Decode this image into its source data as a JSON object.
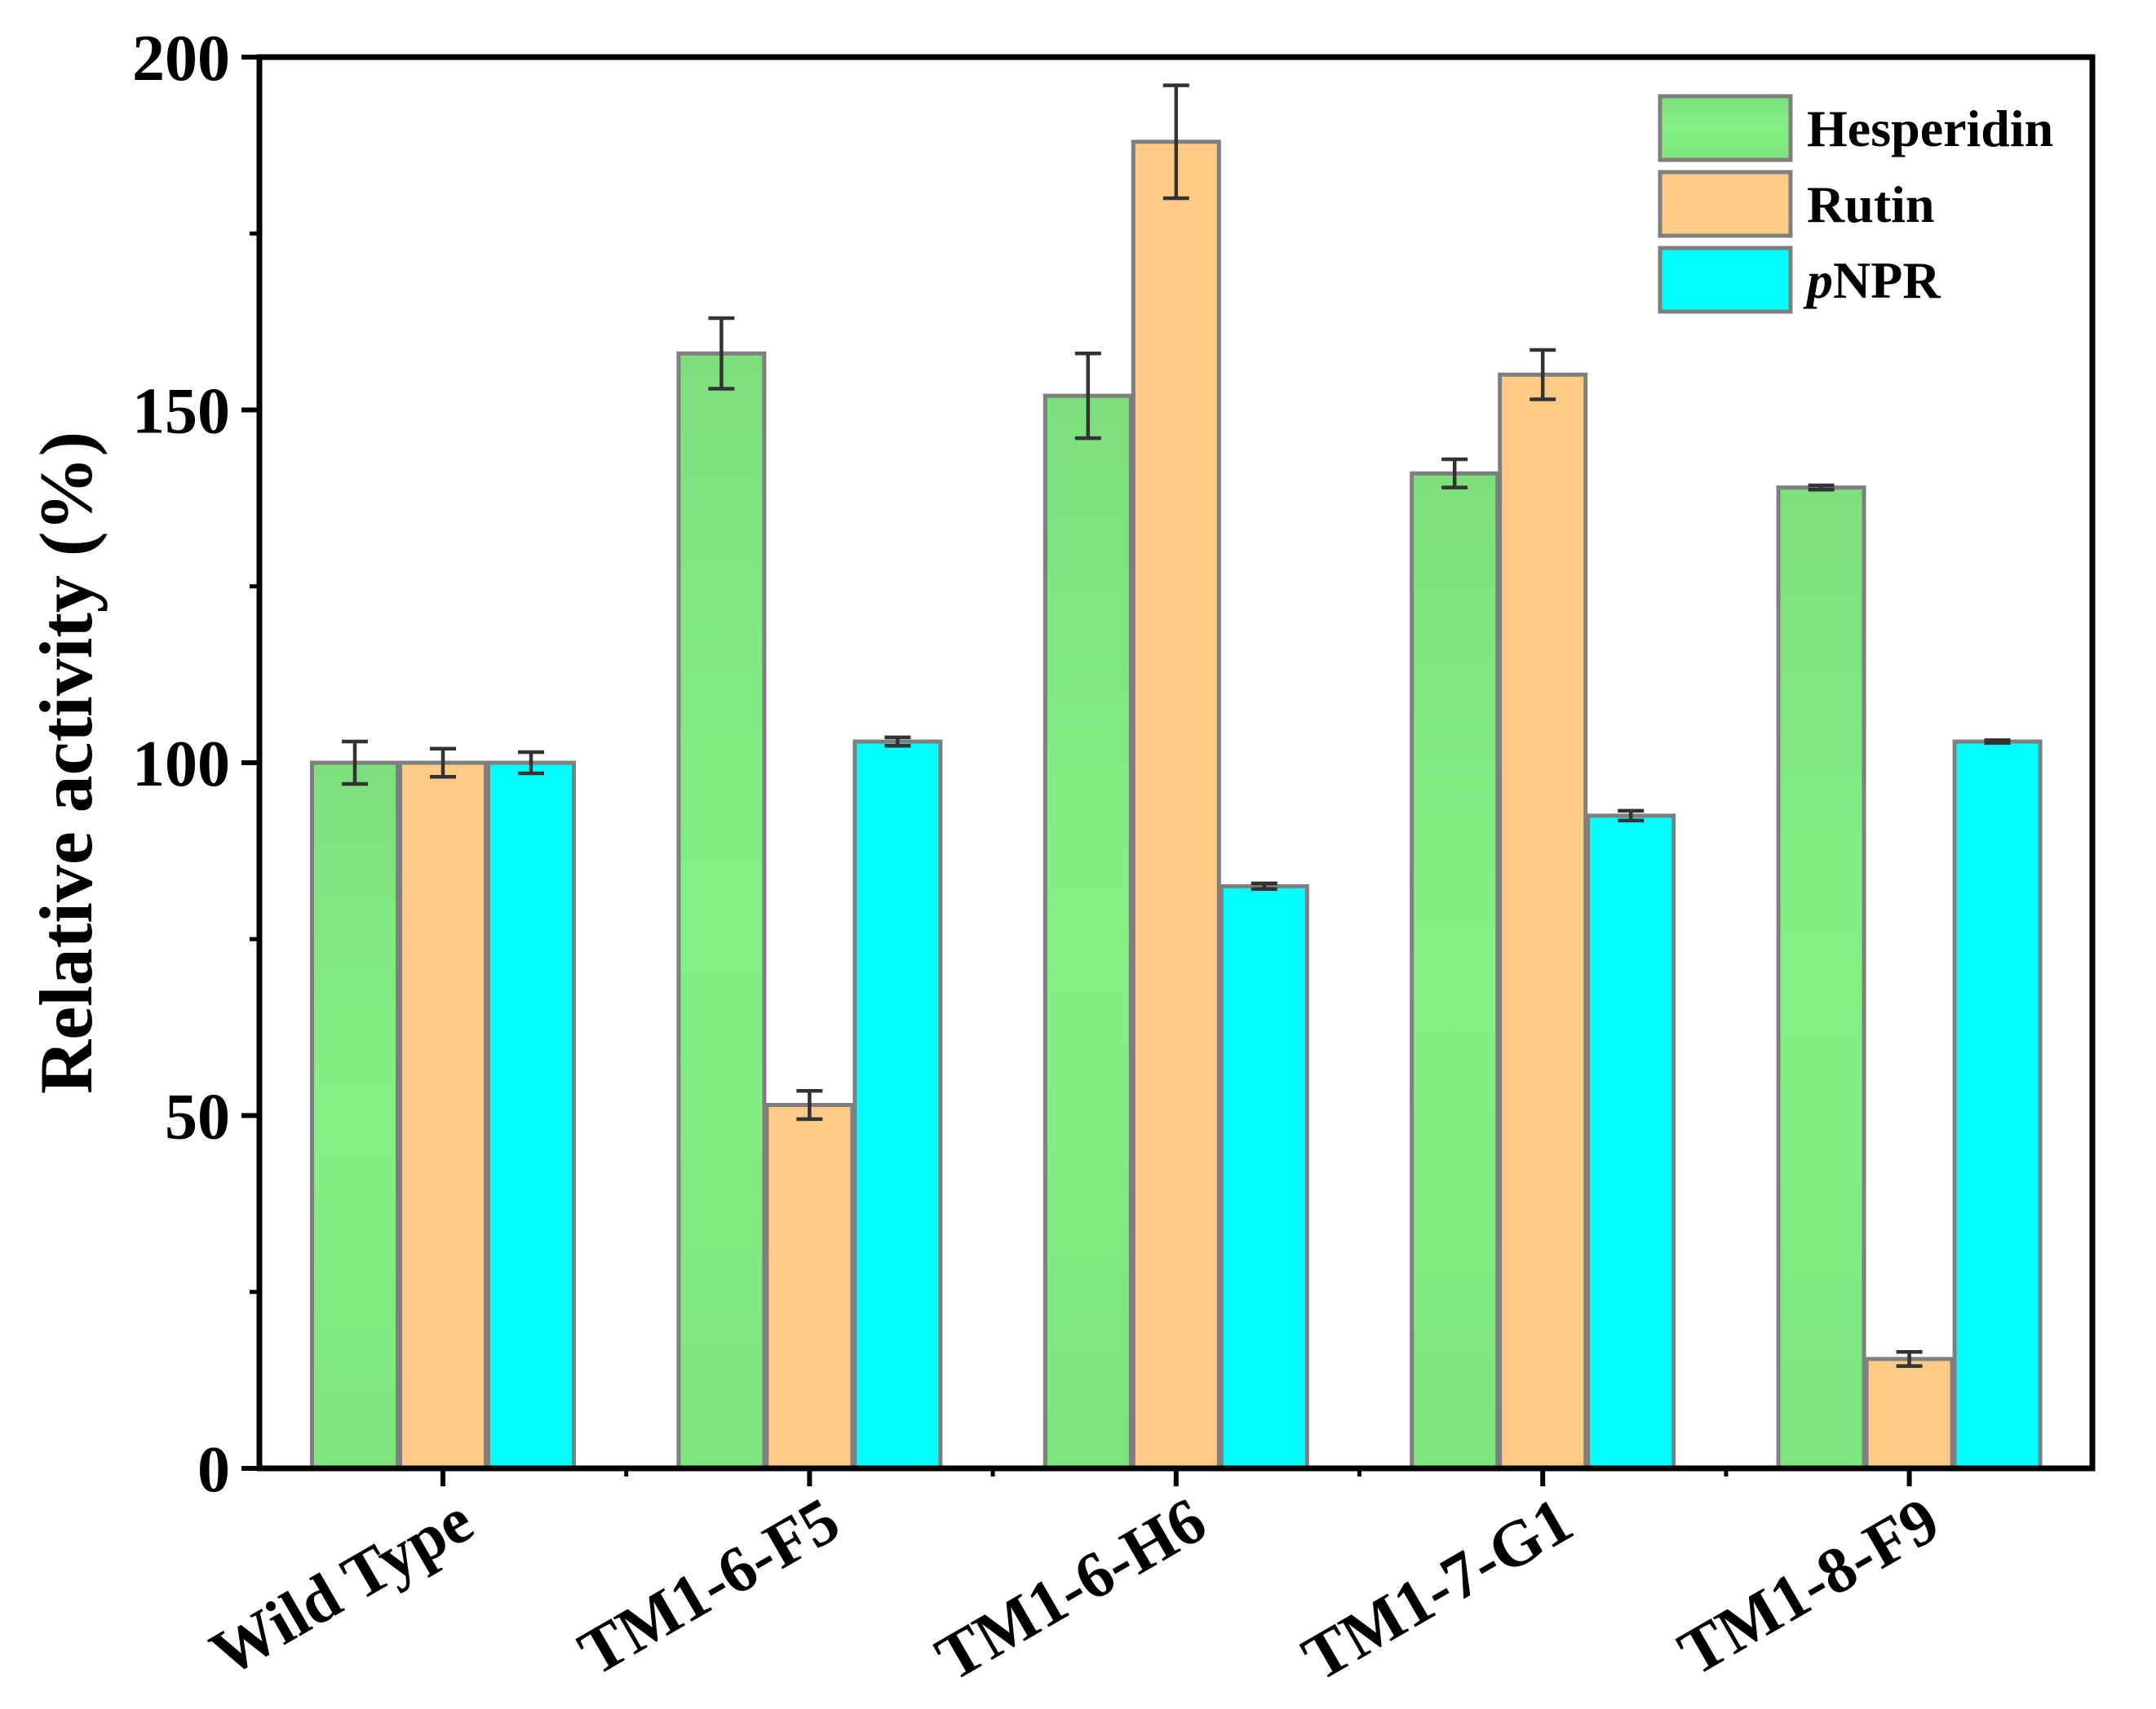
{
  "chart_data": {
    "type": "bar",
    "title": "",
    "xlabel": "",
    "ylabel": "Relative activity (%)",
    "ylim": [
      0,
      200
    ],
    "yticks": [
      "0",
      "50",
      "100",
      "150",
      "200"
    ],
    "categories": [
      "Wild Type",
      "TM1-6-F5",
      "TM1-6-H6",
      "TM1-7-G1",
      "TM1-8-F9"
    ],
    "series": [
      {
        "name": "Hesperidin",
        "color": "#82ee82",
        "values": [
          100,
          158,
          152,
          141,
          139
        ],
        "errors": [
          3,
          5,
          6,
          2,
          0.3
        ]
      },
      {
        "name": "Rutin",
        "color": "#ffca85",
        "values": [
          100,
          51.5,
          188,
          155,
          15.5
        ],
        "errors": [
          2,
          2,
          8,
          3.5,
          1
        ]
      },
      {
        "name": "pNPR",
        "color": "#00ffff",
        "values": [
          100,
          103,
          82.5,
          92.5,
          103
        ],
        "errors": [
          1.5,
          0.6,
          0.4,
          0.7,
          0.2
        ]
      }
    ],
    "legend": {
      "placement": "top-right",
      "entries": [
        {
          "prefix": "",
          "text": "Hesperidin"
        },
        {
          "prefix": "",
          "text": "Rutin"
        },
        {
          "prefix": "p",
          "text": "NPR"
        }
      ]
    },
    "grid": false
  }
}
